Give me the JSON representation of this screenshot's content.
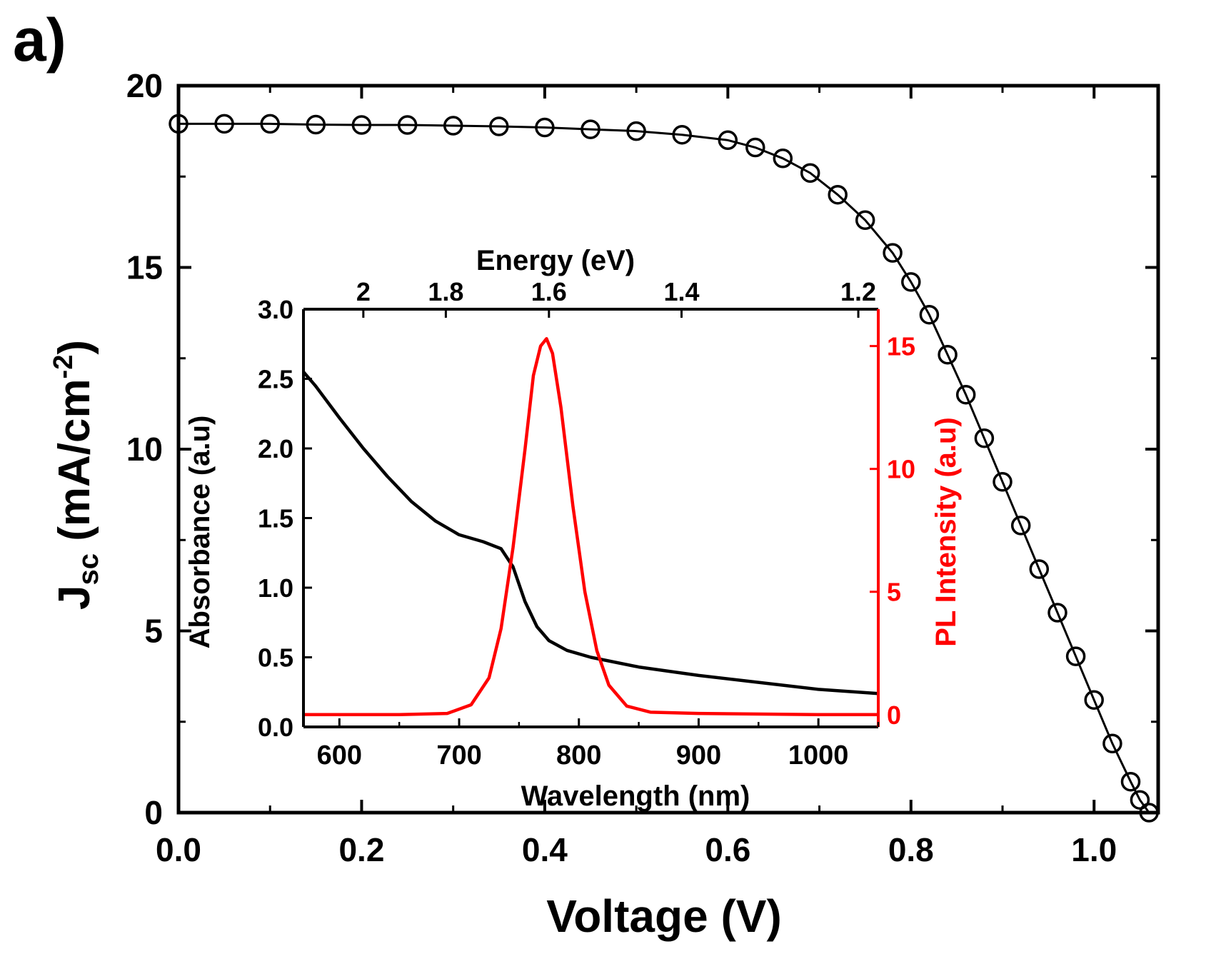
{
  "panel_label": "a)",
  "colors": {
    "black": "#000000",
    "red": "#ff0000",
    "background": "#ffffff"
  },
  "chart_data": [
    {
      "type": "scatter",
      "xlabel": "Voltage (V)",
      "ylabel_main": "J",
      "ylabel_sub": "sc",
      "ylabel_unit": " (mA/cm",
      "ylabel_sup": "-2",
      "ylabel_close": ")",
      "xlim": [
        0.0,
        1.07
      ],
      "ylim": [
        0,
        20
      ],
      "x_ticks": [
        "0.0",
        "0.2",
        "0.4",
        "0.6",
        "0.8",
        "1.0"
      ],
      "x_tick_values": [
        0.0,
        0.2,
        0.4,
        0.6,
        0.8,
        1.0
      ],
      "y_ticks": [
        "0",
        "5",
        "10",
        "15",
        "20"
      ],
      "y_tick_values": [
        0,
        5,
        10,
        15,
        20
      ],
      "grid": false,
      "series": [
        {
          "style": "open circles with line",
          "color": "#000000",
          "x": [
            0.0,
            0.05,
            0.1,
            0.15,
            0.2,
            0.25,
            0.3,
            0.35,
            0.4,
            0.45,
            0.5,
            0.55,
            0.6,
            0.63,
            0.66,
            0.69,
            0.72,
            0.75,
            0.78,
            0.8,
            0.82,
            0.84,
            0.86,
            0.88,
            0.9,
            0.92,
            0.94,
            0.96,
            0.98,
            1.0,
            1.02,
            1.04,
            1.05,
            1.06
          ],
          "y": [
            18.95,
            18.95,
            18.95,
            18.93,
            18.92,
            18.92,
            18.9,
            18.88,
            18.85,
            18.8,
            18.75,
            18.65,
            18.5,
            18.3,
            18.0,
            17.6,
            17.0,
            16.3,
            15.4,
            14.6,
            13.7,
            12.6,
            11.5,
            10.3,
            9.1,
            7.9,
            6.7,
            5.5,
            4.3,
            3.1,
            1.9,
            0.85,
            0.35,
            0.0
          ]
        }
      ]
    },
    {
      "type": "line",
      "inset": true,
      "xlabel": "Wavelength (nm)",
      "ylabel_left": "Absorbance (a.u)",
      "ylabel_right": "PL Intensity (a.u)",
      "top_axis_label": "Energy (eV)",
      "xlim": [
        570,
        1050
      ],
      "ylim_left": [
        0.0,
        3.0
      ],
      "ylim_right": [
        -0.5,
        16.5
      ],
      "x_ticks": [
        "600",
        "700",
        "800",
        "900",
        "1000"
      ],
      "x_tick_values": [
        600,
        700,
        800,
        900,
        1000
      ],
      "y_left_ticks": [
        "0.0",
        "0.5",
        "1.0",
        "1.5",
        "2.0",
        "2.5",
        "3.0"
      ],
      "y_left_tick_values": [
        0.0,
        0.5,
        1.0,
        1.5,
        2.0,
        2.5,
        3.0
      ],
      "y_right_ticks": [
        "0",
        "5",
        "10",
        "15"
      ],
      "y_right_tick_values": [
        0,
        5,
        10,
        15
      ],
      "top_ticks": [
        "2",
        "1.8",
        "1.6",
        "1.4",
        "1.2"
      ],
      "top_tick_values": [
        2.0,
        1.8,
        1.6,
        1.4,
        1.2
      ],
      "series": [
        {
          "axis": "left",
          "color": "#000000",
          "x": [
            570,
            580,
            600,
            620,
            640,
            660,
            680,
            700,
            720,
            735,
            745,
            755,
            765,
            775,
            790,
            810,
            850,
            900,
            950,
            1000,
            1050
          ],
          "y": [
            2.55,
            2.45,
            2.22,
            2.0,
            1.8,
            1.62,
            1.48,
            1.38,
            1.33,
            1.28,
            1.15,
            0.9,
            0.72,
            0.62,
            0.55,
            0.5,
            0.43,
            0.37,
            0.32,
            0.27,
            0.24
          ]
        },
        {
          "axis": "right",
          "color": "#ff0000",
          "x": [
            570,
            650,
            690,
            710,
            725,
            735,
            745,
            755,
            762,
            768,
            773,
            778,
            785,
            795,
            805,
            815,
            825,
            840,
            860,
            900,
            1000,
            1050
          ],
          "y": [
            0.0,
            0.0,
            0.05,
            0.4,
            1.5,
            3.5,
            6.8,
            10.8,
            13.8,
            15.0,
            15.3,
            14.7,
            12.5,
            8.5,
            5.0,
            2.6,
            1.2,
            0.35,
            0.1,
            0.05,
            0.0,
            0.0
          ]
        }
      ]
    }
  ]
}
